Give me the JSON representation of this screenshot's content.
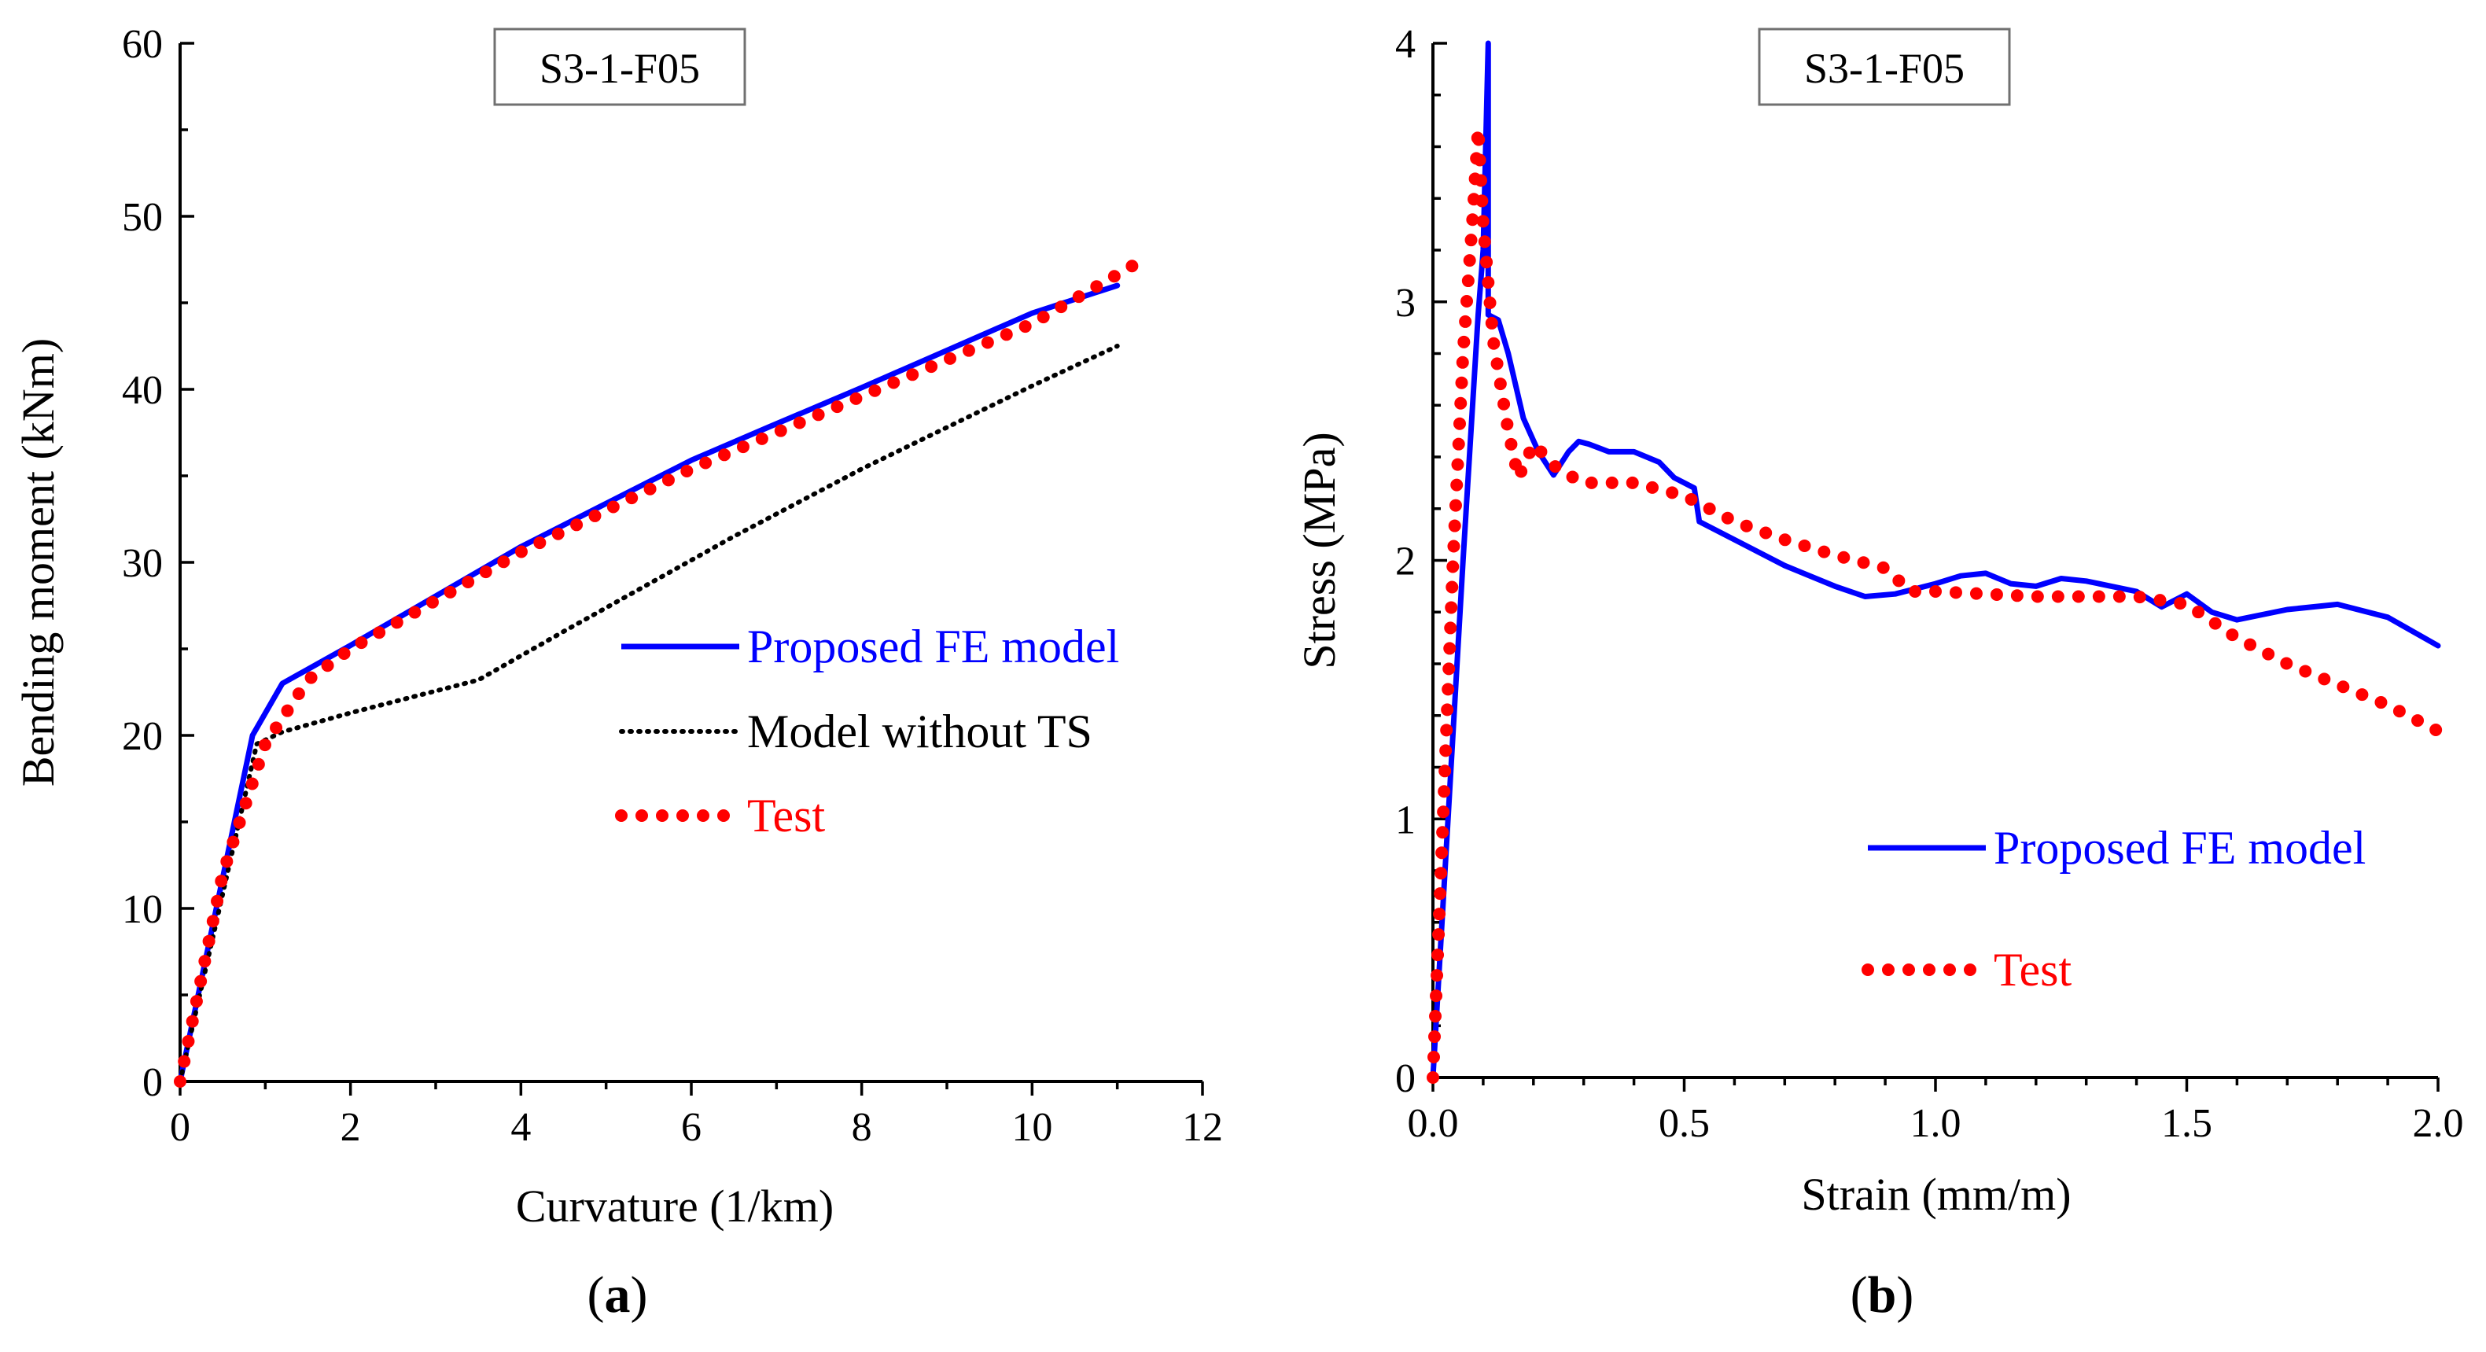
{
  "charts": [
    {
      "id": "a",
      "panel_letter": "a",
      "chart_data": {
        "type": "line",
        "title": "S3-1-F05",
        "xlabel": "Curvature (1/km)",
        "ylabel": "Bending moment (kNm)",
        "xlim": [
          0,
          12
        ],
        "ylim": [
          0,
          60
        ],
        "xticks": [
          0,
          2,
          4,
          6,
          8,
          10,
          12
        ],
        "yticks": [
          0,
          10,
          20,
          30,
          40,
          50,
          60
        ],
        "xtick_labels": [
          "0",
          "2",
          "4",
          "6",
          "8",
          "10",
          "12"
        ],
        "ytick_labels": [
          "0",
          "10",
          "20",
          "30",
          "40",
          "50",
          "60"
        ],
        "legend_position": "center-right",
        "series": [
          {
            "name": "Proposed FE model",
            "style": "solid",
            "color": "#0000ff",
            "points": [
              [
                0,
                0
              ],
              [
                0.85,
                20.0
              ],
              [
                1.2,
                23.0
              ],
              [
                2,
                25.2
              ],
              [
                4,
                30.9
              ],
              [
                6,
                35.9
              ],
              [
                6.9,
                37.8
              ],
              [
                8,
                40.1
              ],
              [
                10,
                44.4
              ],
              [
                11,
                46.0
              ]
            ]
          },
          {
            "name": "Model without TS",
            "style": "dotted-small",
            "color": "#000000",
            "points": [
              [
                0,
                0
              ],
              [
                0.9,
                19.5
              ],
              [
                1.2,
                20.2
              ],
              [
                2,
                21.3
              ],
              [
                3.5,
                23.2
              ],
              [
                4.5,
                26.0
              ],
              [
                6.5,
                31.5
              ],
              [
                8,
                35.4
              ],
              [
                10,
                40.2
              ],
              [
                11,
                42.5
              ]
            ]
          },
          {
            "name": "Test",
            "style": "dotted-large",
            "color": "#ff0000",
            "points": [
              [
                0,
                0
              ],
              [
                0.5,
                12.0
              ],
              [
                1.0,
                19.5
              ],
              [
                1.5,
                23.2
              ],
              [
                2,
                25.0
              ],
              [
                4,
                30.6
              ],
              [
                6,
                35.4
              ],
              [
                8,
                39.6
              ],
              [
                10,
                43.8
              ],
              [
                11.2,
                47.2
              ]
            ]
          }
        ]
      }
    },
    {
      "id": "b",
      "panel_letter": "b",
      "chart_data": {
        "type": "line",
        "title": "S3-1-F05",
        "xlabel": "Strain (mm/m)",
        "ylabel": "Stress (MPa)",
        "xlim": [
          0,
          2.0
        ],
        "ylim": [
          0,
          4
        ],
        "xticks": [
          0,
          0.5,
          1.0,
          1.5,
          2.0
        ],
        "yticks": [
          0,
          1,
          2,
          3,
          4
        ],
        "xtick_labels": [
          "0.0",
          "0.5",
          "1.0",
          "1.5",
          "2.0"
        ],
        "ytick_labels": [
          "0",
          "1",
          "2",
          "3",
          "4"
        ],
        "legend_position": "lower-right",
        "series": [
          {
            "name": "Proposed FE model",
            "style": "solid",
            "color": "#0000ff",
            "points": [
              [
                0,
                0
              ],
              [
                0.03,
                1.0
              ],
              [
                0.06,
                2.0
              ],
              [
                0.09,
                2.95
              ],
              [
                0.1,
                3.2
              ],
              [
                0.105,
                3.6
              ],
              [
                0.11,
                4.0
              ],
              [
                0.11,
                2.95
              ],
              [
                0.13,
                2.93
              ],
              [
                0.15,
                2.8
              ],
              [
                0.18,
                2.55
              ],
              [
                0.21,
                2.42
              ],
              [
                0.24,
                2.33
              ],
              [
                0.27,
                2.42
              ],
              [
                0.29,
                2.46
              ],
              [
                0.31,
                2.45
              ],
              [
                0.35,
                2.42
              ],
              [
                0.4,
                2.42
              ],
              [
                0.45,
                2.38
              ],
              [
                0.48,
                2.32
              ],
              [
                0.52,
                2.28
              ],
              [
                0.53,
                2.15
              ],
              [
                0.6,
                2.08
              ],
              [
                0.7,
                1.98
              ],
              [
                0.8,
                1.9
              ],
              [
                0.86,
                1.86
              ],
              [
                0.92,
                1.87
              ],
              [
                1.0,
                1.91
              ],
              [
                1.05,
                1.94
              ],
              [
                1.1,
                1.95
              ],
              [
                1.15,
                1.91
              ],
              [
                1.2,
                1.9
              ],
              [
                1.25,
                1.93
              ],
              [
                1.3,
                1.92
              ],
              [
                1.35,
                1.9
              ],
              [
                1.4,
                1.88
              ],
              [
                1.45,
                1.82
              ],
              [
                1.5,
                1.87
              ],
              [
                1.55,
                1.8
              ],
              [
                1.6,
                1.77
              ],
              [
                1.7,
                1.81
              ],
              [
                1.8,
                1.83
              ],
              [
                1.9,
                1.78
              ],
              [
                2.0,
                1.67
              ]
            ]
          },
          {
            "name": "Test",
            "style": "dotted-large",
            "color": "#ff0000",
            "points": [
              [
                0,
                0
              ],
              [
                0.02,
                1.0
              ],
              [
                0.04,
                2.0
              ],
              [
                0.06,
                2.8
              ],
              [
                0.08,
                3.35
              ],
              [
                0.09,
                3.67
              ],
              [
                0.1,
                3.3
              ],
              [
                0.12,
                2.85
              ],
              [
                0.15,
                2.5
              ],
              [
                0.17,
                2.32
              ],
              [
                0.2,
                2.45
              ],
              [
                0.25,
                2.35
              ],
              [
                0.3,
                2.3
              ],
              [
                0.4,
                2.3
              ],
              [
                0.5,
                2.25
              ],
              [
                0.6,
                2.15
              ],
              [
                0.7,
                2.08
              ],
              [
                0.8,
                2.02
              ],
              [
                0.9,
                1.97
              ],
              [
                0.95,
                1.88
              ],
              [
                1.0,
                1.88
              ],
              [
                1.2,
                1.86
              ],
              [
                1.4,
                1.86
              ],
              [
                1.5,
                1.83
              ],
              [
                1.6,
                1.7
              ],
              [
                1.7,
                1.6
              ],
              [
                1.8,
                1.52
              ],
              [
                1.9,
                1.44
              ],
              [
                2.0,
                1.34
              ]
            ]
          }
        ]
      }
    }
  ]
}
